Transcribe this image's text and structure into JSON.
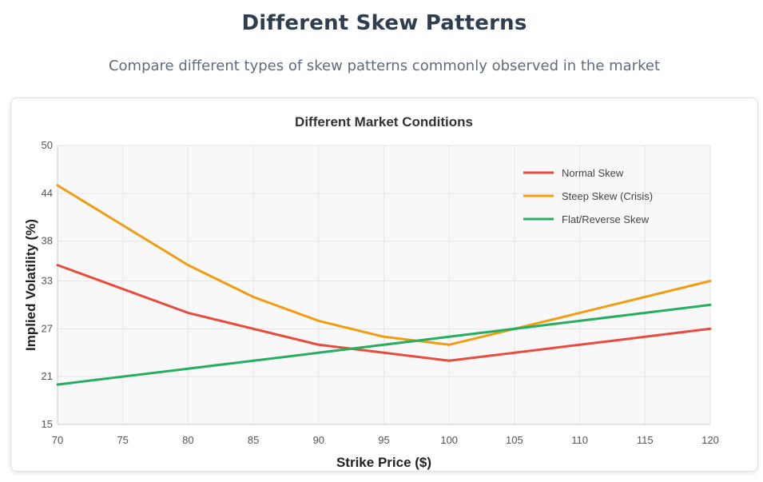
{
  "header": {
    "title": "Different Skew Patterns",
    "subtitle": "Compare different types of skew patterns commonly observed in the market"
  },
  "chart_data": {
    "type": "line",
    "title": "Different Market Conditions",
    "xlabel": "Strike Price ($)",
    "ylabel": "Implied Volatility (%)",
    "x_ticks": [
      70,
      75,
      80,
      85,
      90,
      95,
      100,
      105,
      110,
      115,
      120
    ],
    "y_ticks": [
      15,
      21,
      27,
      33,
      38,
      44,
      50
    ],
    "xlim": [
      70,
      120
    ],
    "ylim": [
      15,
      50
    ],
    "grid": true,
    "legend_position": "top-right",
    "series": [
      {
        "name": "Normal Skew",
        "color": "#e74c3c",
        "x": [
          70,
          80,
          90,
          100,
          110,
          120
        ],
        "values": [
          35,
          29,
          25,
          23,
          25,
          27
        ]
      },
      {
        "name": "Steep Skew (Crisis)",
        "color": "#f39c12",
        "x": [
          70,
          80,
          85,
          90,
          95,
          100,
          110,
          120
        ],
        "values": [
          45,
          35,
          31,
          28,
          26,
          25,
          29,
          33
        ]
      },
      {
        "name": "Flat/Reverse Skew",
        "color": "#27ae60",
        "x": [
          70,
          80,
          90,
          100,
          110,
          120
        ],
        "values": [
          20,
          22,
          24,
          26,
          28,
          30
        ]
      }
    ]
  }
}
